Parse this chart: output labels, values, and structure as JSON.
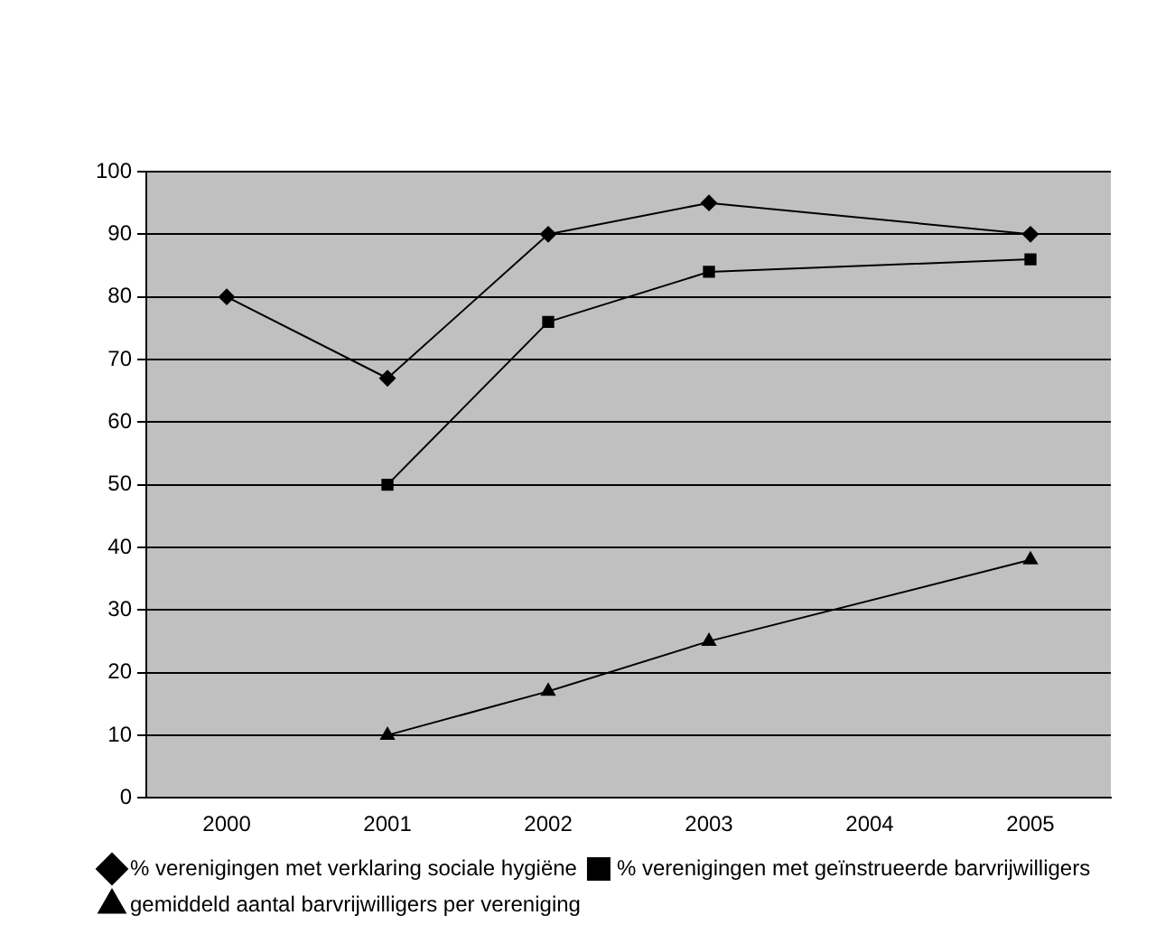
{
  "chart_data": {
    "type": "line",
    "categories": [
      "2000",
      "2001",
      "2002",
      "2003",
      "2004",
      "2005"
    ],
    "series": [
      {
        "name": "% verenigingen met verklaring sociale hygiëne",
        "color": "#000000",
        "marker": "diamond",
        "values": [
          80,
          67,
          90,
          95,
          null,
          90
        ]
      },
      {
        "name": "% verenigingen met geïnstrueerde barvrijwilligers",
        "color": "#000000",
        "marker": "square",
        "values": [
          null,
          50,
          76,
          84,
          null,
          86
        ]
      },
      {
        "name": "gemiddeld aantal barvrijwilligers per vereniging",
        "color": "#000000",
        "marker": "triangle",
        "values": [
          null,
          10,
          17,
          25,
          null,
          38
        ]
      }
    ],
    "ylim": [
      0,
      100
    ],
    "yticks": [
      0,
      10,
      20,
      30,
      40,
      50,
      60,
      70,
      80,
      90,
      100
    ],
    "grid": "y",
    "legend": "bottom"
  }
}
